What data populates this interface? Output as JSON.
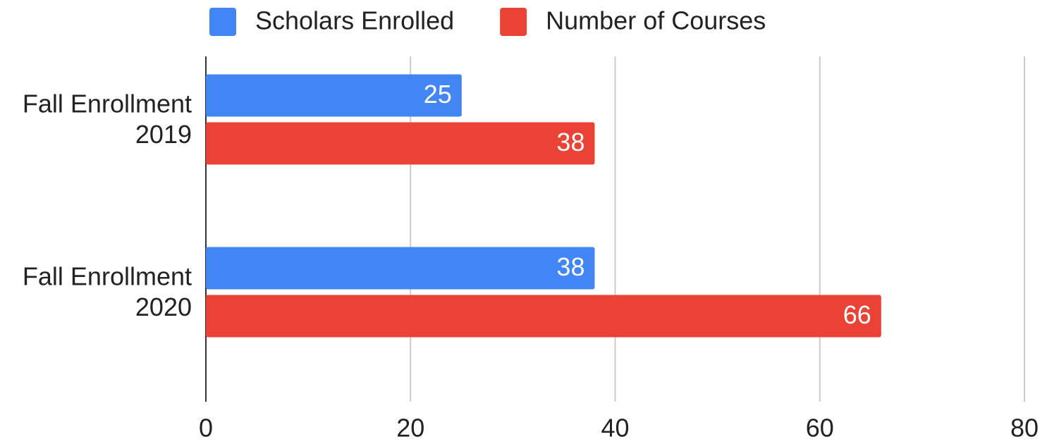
{
  "chart_data": {
    "type": "hbar",
    "categories": [
      "Fall Enrollment 2019",
      "Fall Enrollment 2020"
    ],
    "series": [
      {
        "name": "Scholars Enrolled",
        "color": "#4285f4",
        "values": [
          25,
          38
        ]
      },
      {
        "name": "Number of Courses",
        "color": "#ea4335",
        "values": [
          38,
          66
        ]
      }
    ],
    "xlim": [
      0,
      80
    ],
    "xticks": [
      0,
      20,
      40,
      60,
      80
    ],
    "grid": true,
    "legend": "top"
  }
}
